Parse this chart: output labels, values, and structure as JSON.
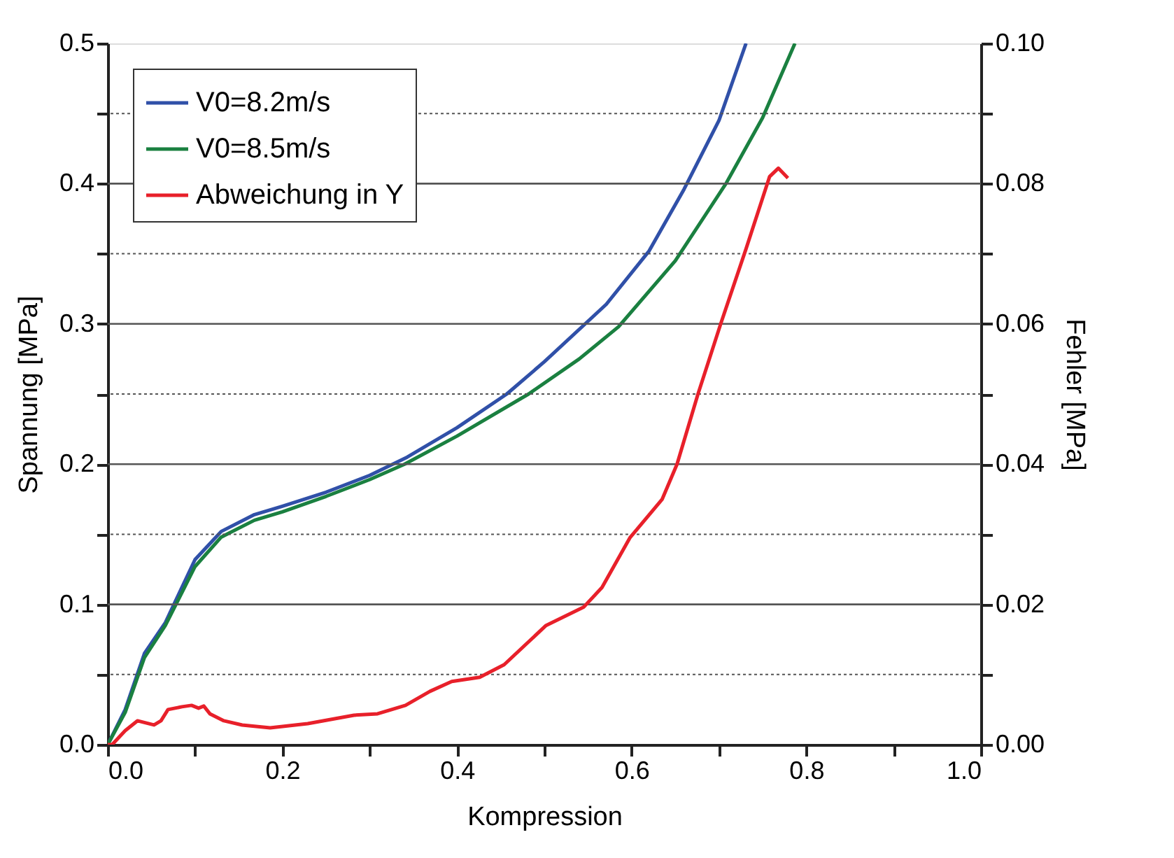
{
  "chart_data": {
    "type": "line",
    "xlabel": "Kompression",
    "ylabel": "Spannung [MPa]",
    "y2label": "Fehler [MPa]",
    "xlim": [
      0,
      1
    ],
    "xticks": [
      {
        "value": 0,
        "label": "0.0"
      },
      {
        "value": 0.1,
        "label": null
      },
      {
        "value": 0.2,
        "label": "0.2"
      },
      {
        "value": 0.3,
        "label": null
      },
      {
        "value": 0.4,
        "label": "0.4"
      },
      {
        "value": 0.5,
        "label": null
      },
      {
        "value": 0.6,
        "label": "0.6"
      },
      {
        "value": 0.7,
        "label": null
      },
      {
        "value": 0.8,
        "label": "0.8"
      },
      {
        "value": 0.9,
        "label": null
      },
      {
        "value": 1,
        "label": "1.0"
      }
    ],
    "ylim": [
      0,
      0.5
    ],
    "yticks": [
      {
        "value": 0,
        "label": "0.0"
      },
      {
        "value": 0.05,
        "label": null
      },
      0.1,
      {
        "value": 0.15,
        "label": null
      },
      0.2,
      {
        "value": 0.25,
        "label": null
      },
      0.3,
      {
        "value": 0.35,
        "label": null
      },
      0.4,
      {
        "value": 0.45,
        "label": null
      },
      0.5
    ],
    "y2lim": [
      0,
      0.1
    ],
    "y2ticks": [
      {
        "value": 0,
        "label": "0.00"
      },
      {
        "value": 0.01,
        "label": null
      },
      {
        "value": 0.02,
        "label": "0.02"
      },
      {
        "value": 0.03,
        "label": null
      },
      {
        "value": 0.04,
        "label": "0.04"
      },
      {
        "value": 0.05,
        "label": null
      },
      {
        "value": 0.06,
        "label": "0.06"
      },
      {
        "value": 0.07,
        "label": null
      },
      {
        "value": 0.08,
        "label": "0.08"
      },
      {
        "value": 0.09,
        "label": null
      },
      {
        "value": 0.1,
        "label": "0.10"
      }
    ],
    "grid": "y",
    "legend": "top left",
    "marker": "none",
    "line_style": "solid",
    "series": [
      {
        "name": "V0=8.2m/s",
        "color": "#3050a8",
        "x": [
          0,
          0.02,
          0.042,
          0.066,
          0.1,
          0.13,
          0.168,
          0.2,
          0.25,
          0.3,
          0.343,
          0.4,
          0.457,
          0.5,
          0.571,
          0.62,
          0.66,
          0.7,
          0.731
        ],
        "values": [
          0,
          0.025,
          0.065,
          0.087,
          0.132,
          0.152,
          0.164,
          0.17,
          0.18,
          0.192,
          0.205,
          0.226,
          0.25,
          0.273,
          0.314,
          0.352,
          0.396,
          0.445,
          0.5
        ]
      },
      {
        "name": "V0=8.5m/s",
        "color": "#1a8040",
        "x": [
          0,
          0.02,
          0.042,
          0.066,
          0.1,
          0.13,
          0.168,
          0.2,
          0.25,
          0.3,
          0.34,
          0.4,
          0.482,
          0.54,
          0.585,
          0.65,
          0.708,
          0.75,
          0.787
        ],
        "values": [
          0,
          0.023,
          0.062,
          0.085,
          0.127,
          0.148,
          0.16,
          0.166,
          0.177,
          0.189,
          0.2,
          0.22,
          0.25,
          0.275,
          0.298,
          0.345,
          0.4,
          0.447,
          0.5
        ]
      },
      {
        "name": "Abweichung in Y",
        "color": "#e8202a",
        "axis": "y2",
        "x": [
          0,
          0.005,
          0.02,
          0.034,
          0.053,
          0.061,
          0.069,
          0.085,
          0.096,
          0.104,
          0.11,
          0.117,
          0.133,
          0.154,
          0.186,
          0.229,
          0.282,
          0.309,
          0.341,
          0.369,
          0.394,
          0.426,
          0.454,
          0.502,
          0.545,
          0.566,
          0.598,
          0.635,
          0.652,
          0.676,
          0.702,
          0.731,
          0.758,
          0.768,
          0.779
        ],
        "values": [
          0,
          0,
          0.002,
          0.0034,
          0.0028,
          0.0034,
          0.005,
          0.0054,
          0.0056,
          0.0052,
          0.0055,
          0.0044,
          0.0034,
          0.0028,
          0.0024,
          0.003,
          0.0042,
          0.0044,
          0.0056,
          0.0076,
          0.009,
          0.0096,
          0.0114,
          0.017,
          0.0196,
          0.0224,
          0.0295,
          0.035,
          0.04,
          0.05,
          0.06,
          0.0707,
          0.081,
          0.0822,
          0.0808
        ]
      }
    ]
  }
}
